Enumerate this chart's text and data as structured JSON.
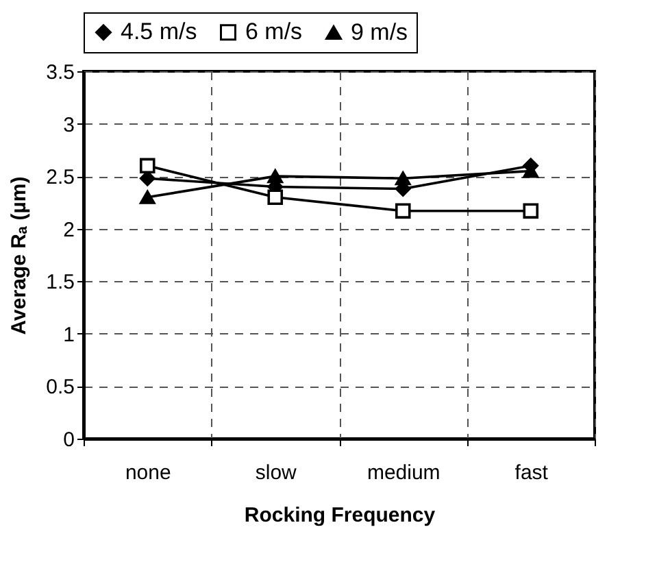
{
  "chart_data": {
    "type": "line",
    "xlabel": "Rocking Frequency",
    "ylabel": "Average Rₐ (µm)",
    "categories": [
      "none",
      "slow",
      "medium",
      "fast"
    ],
    "series": [
      {
        "name": "4.5 m/s",
        "color": "#000000",
        "marker": "diamond",
        "values": [
          2.48,
          2.4,
          2.38,
          2.6
        ]
      },
      {
        "name": "6 m/s",
        "color": "#000000",
        "marker": "square",
        "values": [
          2.6,
          2.3,
          2.17,
          2.17
        ]
      },
      {
        "name": "9 m/s",
        "color": "#000000",
        "marker": "triangle",
        "values": [
          2.3,
          2.5,
          2.48,
          2.55
        ]
      }
    ],
    "ylim": [
      0,
      3.5
    ],
    "yticks": [
      0,
      0.5,
      1,
      1.5,
      2,
      2.5,
      3,
      3.5
    ],
    "grid": true,
    "legend": "top",
    "line_style": "solid"
  }
}
